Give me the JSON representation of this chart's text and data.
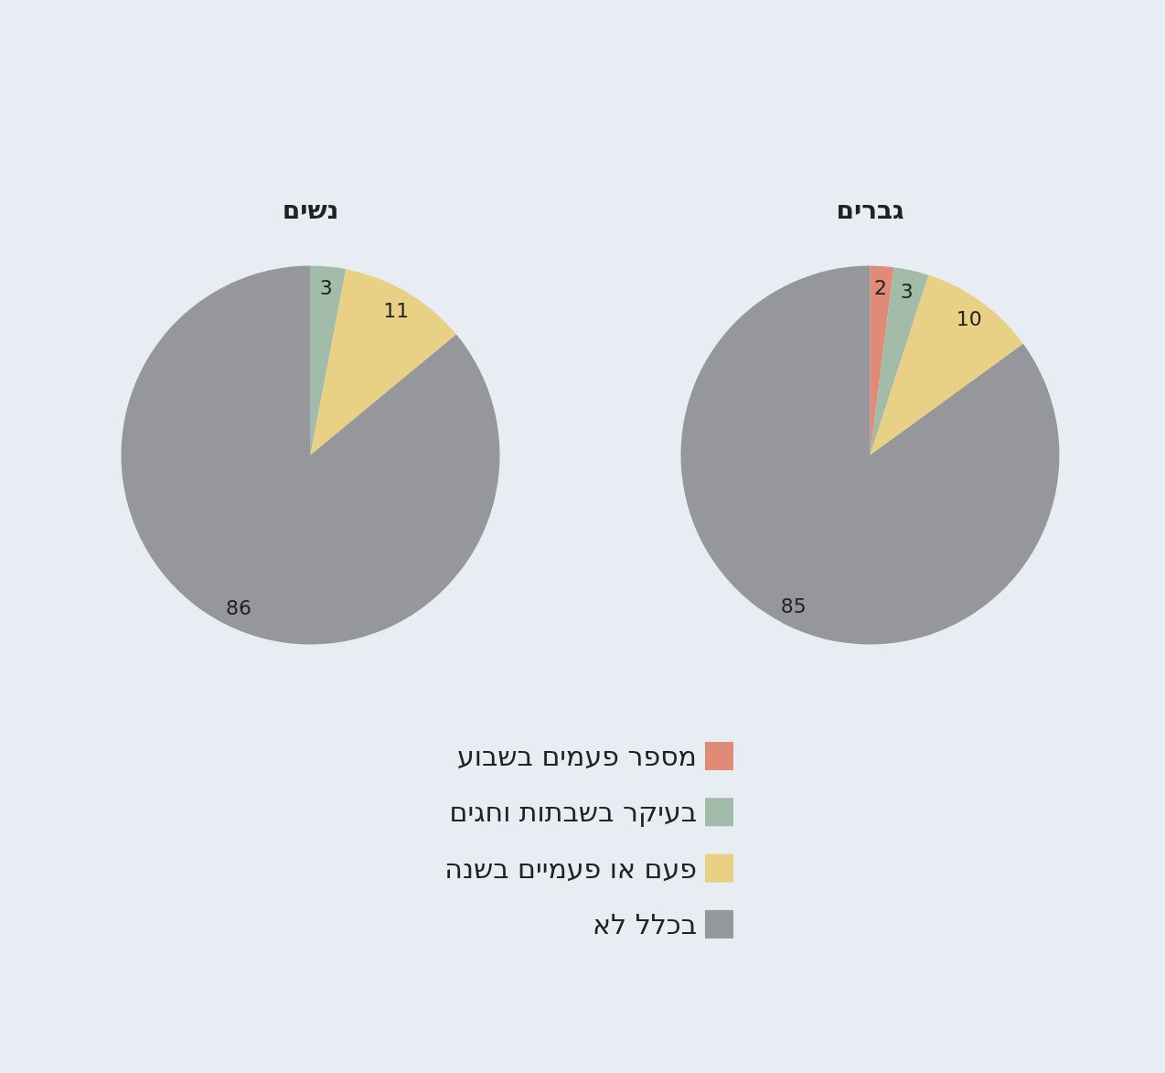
{
  "chart_data": [
    {
      "type": "pie",
      "title": "נשים",
      "categories": [
        null,
        null,
        null
      ],
      "values": [
        3,
        11,
        86
      ],
      "colors": [
        "#a3bba9",
        "#e8d185",
        "#96979a"
      ],
      "data_labels": true
    },
    {
      "type": "pie",
      "title": "גברים",
      "categories": [
        "מספר פעמים בשבוע",
        "בעיקר בשבתות וחגים",
        "פעם או פעמיים בשנה",
        "בכלל לא"
      ],
      "values": [
        2,
        3,
        10,
        85
      ],
      "colors": [
        "#df8b78",
        "#a3bba9",
        "#e8d185",
        "#96979a"
      ],
      "data_labels": true,
      "legend": "bottom"
    }
  ]
}
